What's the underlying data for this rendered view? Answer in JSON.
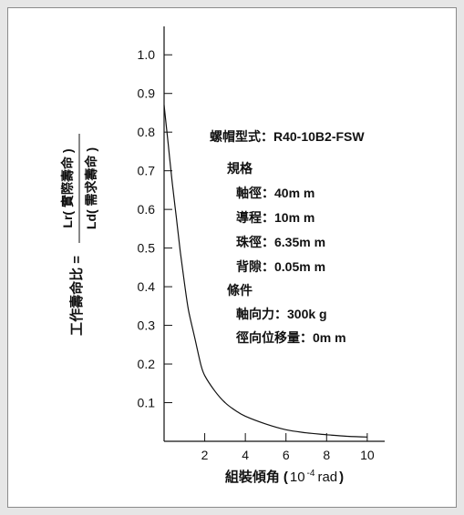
{
  "chart_data": {
    "type": "line",
    "xlabel_main": "組裝傾角",
    "xlabel_paren_open": "(",
    "xlabel_unit_base": "10",
    "xlabel_unit_exp": "-4",
    "xlabel_unit_rest": "rad",
    "xlabel_paren_close": ")",
    "ylabel_left": "工作壽命比 =",
    "ylabel_numerator": "Lr( 實際壽命 )",
    "ylabel_denominator": "Ld( 需求壽命 )",
    "xlim": [
      0,
      10.5
    ],
    "ylim": [
      0,
      1.05
    ],
    "x_ticks": [
      2,
      4,
      6,
      8,
      10
    ],
    "x_tick_labels": [
      "2",
      "4",
      "6",
      "8",
      "10"
    ],
    "y_ticks": [
      0.1,
      0.2,
      0.3,
      0.4,
      0.5,
      0.6,
      0.7,
      0.8,
      0.9,
      1.0
    ],
    "y_tick_labels": [
      "0.1",
      "0.2",
      "0.3",
      "0.4",
      "0.5",
      "0.6",
      "0.7",
      "0.8",
      "0.9",
      "1.0"
    ],
    "series": [
      {
        "x": [
          0,
          0.2,
          0.4,
          0.6,
          0.8,
          1.0,
          1.2,
          1.5,
          1.8,
          2.0,
          2.5,
          3.0,
          3.5,
          4.0,
          5.0,
          6.0,
          7.0,
          8.0,
          9.0,
          10.0
        ],
        "y": [
          0.87,
          0.77,
          0.67,
          0.58,
          0.49,
          0.41,
          0.34,
          0.27,
          0.2,
          0.17,
          0.13,
          0.1,
          0.08,
          0.065,
          0.045,
          0.03,
          0.022,
          0.017,
          0.013,
          0.011
        ]
      }
    ]
  },
  "spec": {
    "model": "螺帽型式：R40-10B2-FSW",
    "spec_header": "規格",
    "shaft_dia": "軸徑：40m m",
    "lead": "導程：10m m",
    "ball_dia": "珠徑：6.35m  m",
    "backlash": "背隙：0.05m  m",
    "cond_header": "條件",
    "axial_force": "軸向力：300k g",
    "radial_disp": "徑向位移量：0m m"
  },
  "colors": {
    "line": "#111111",
    "background": "#ffffff",
    "border": "#8a8a8a"
  }
}
